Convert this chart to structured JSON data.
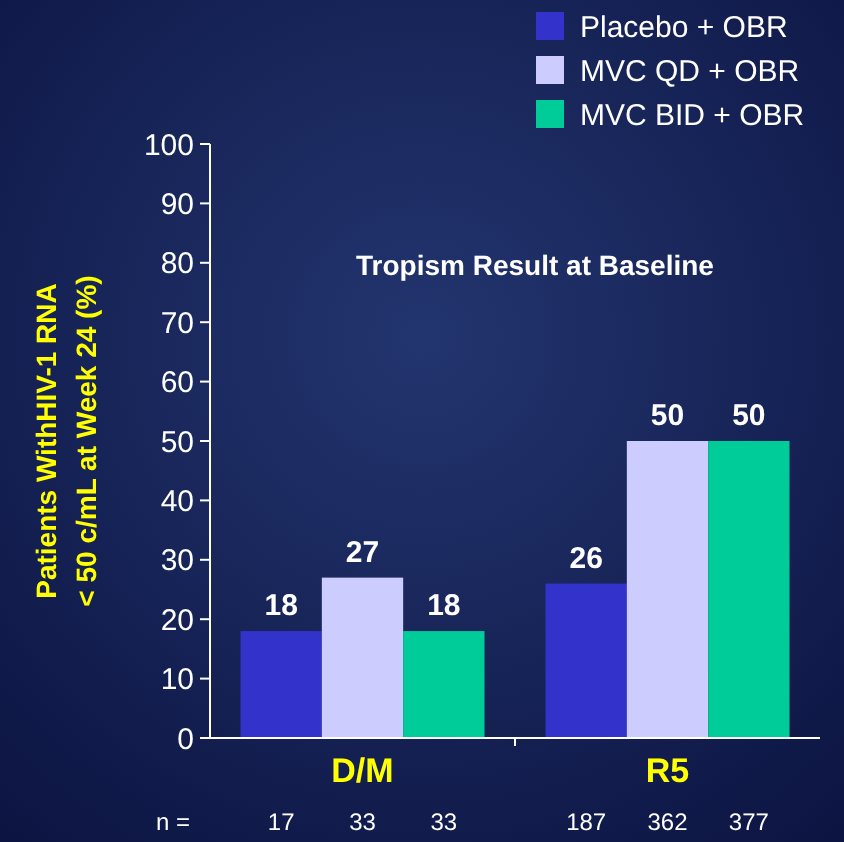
{
  "chart_data": {
    "type": "bar",
    "ylabel": "Patients WithHIV-1 RNA\n< 50 c/mL at Week 24 (%)",
    "categories": [
      "D/M",
      "R5"
    ],
    "series": [
      {
        "name": "Placebo + OBR",
        "color": "#3333cc",
        "values": [
          18,
          26
        ]
      },
      {
        "name": "MVC QD + OBR",
        "color": "#ccccff",
        "values": [
          27,
          50
        ]
      },
      {
        "name": "MVC BID + OBR",
        "color": "#00cc99",
        "values": [
          18,
          50
        ]
      }
    ],
    "ylim": [
      0,
      100
    ],
    "yticks": [
      0,
      10,
      20,
      30,
      40,
      50,
      60,
      70,
      80,
      90,
      100
    ],
    "data_labels": true,
    "legend": "top right",
    "annotations": [
      "Tropism Result at Baseline",
      "n =",
      "17",
      "33",
      "33",
      "187",
      "362",
      "377"
    ]
  }
}
